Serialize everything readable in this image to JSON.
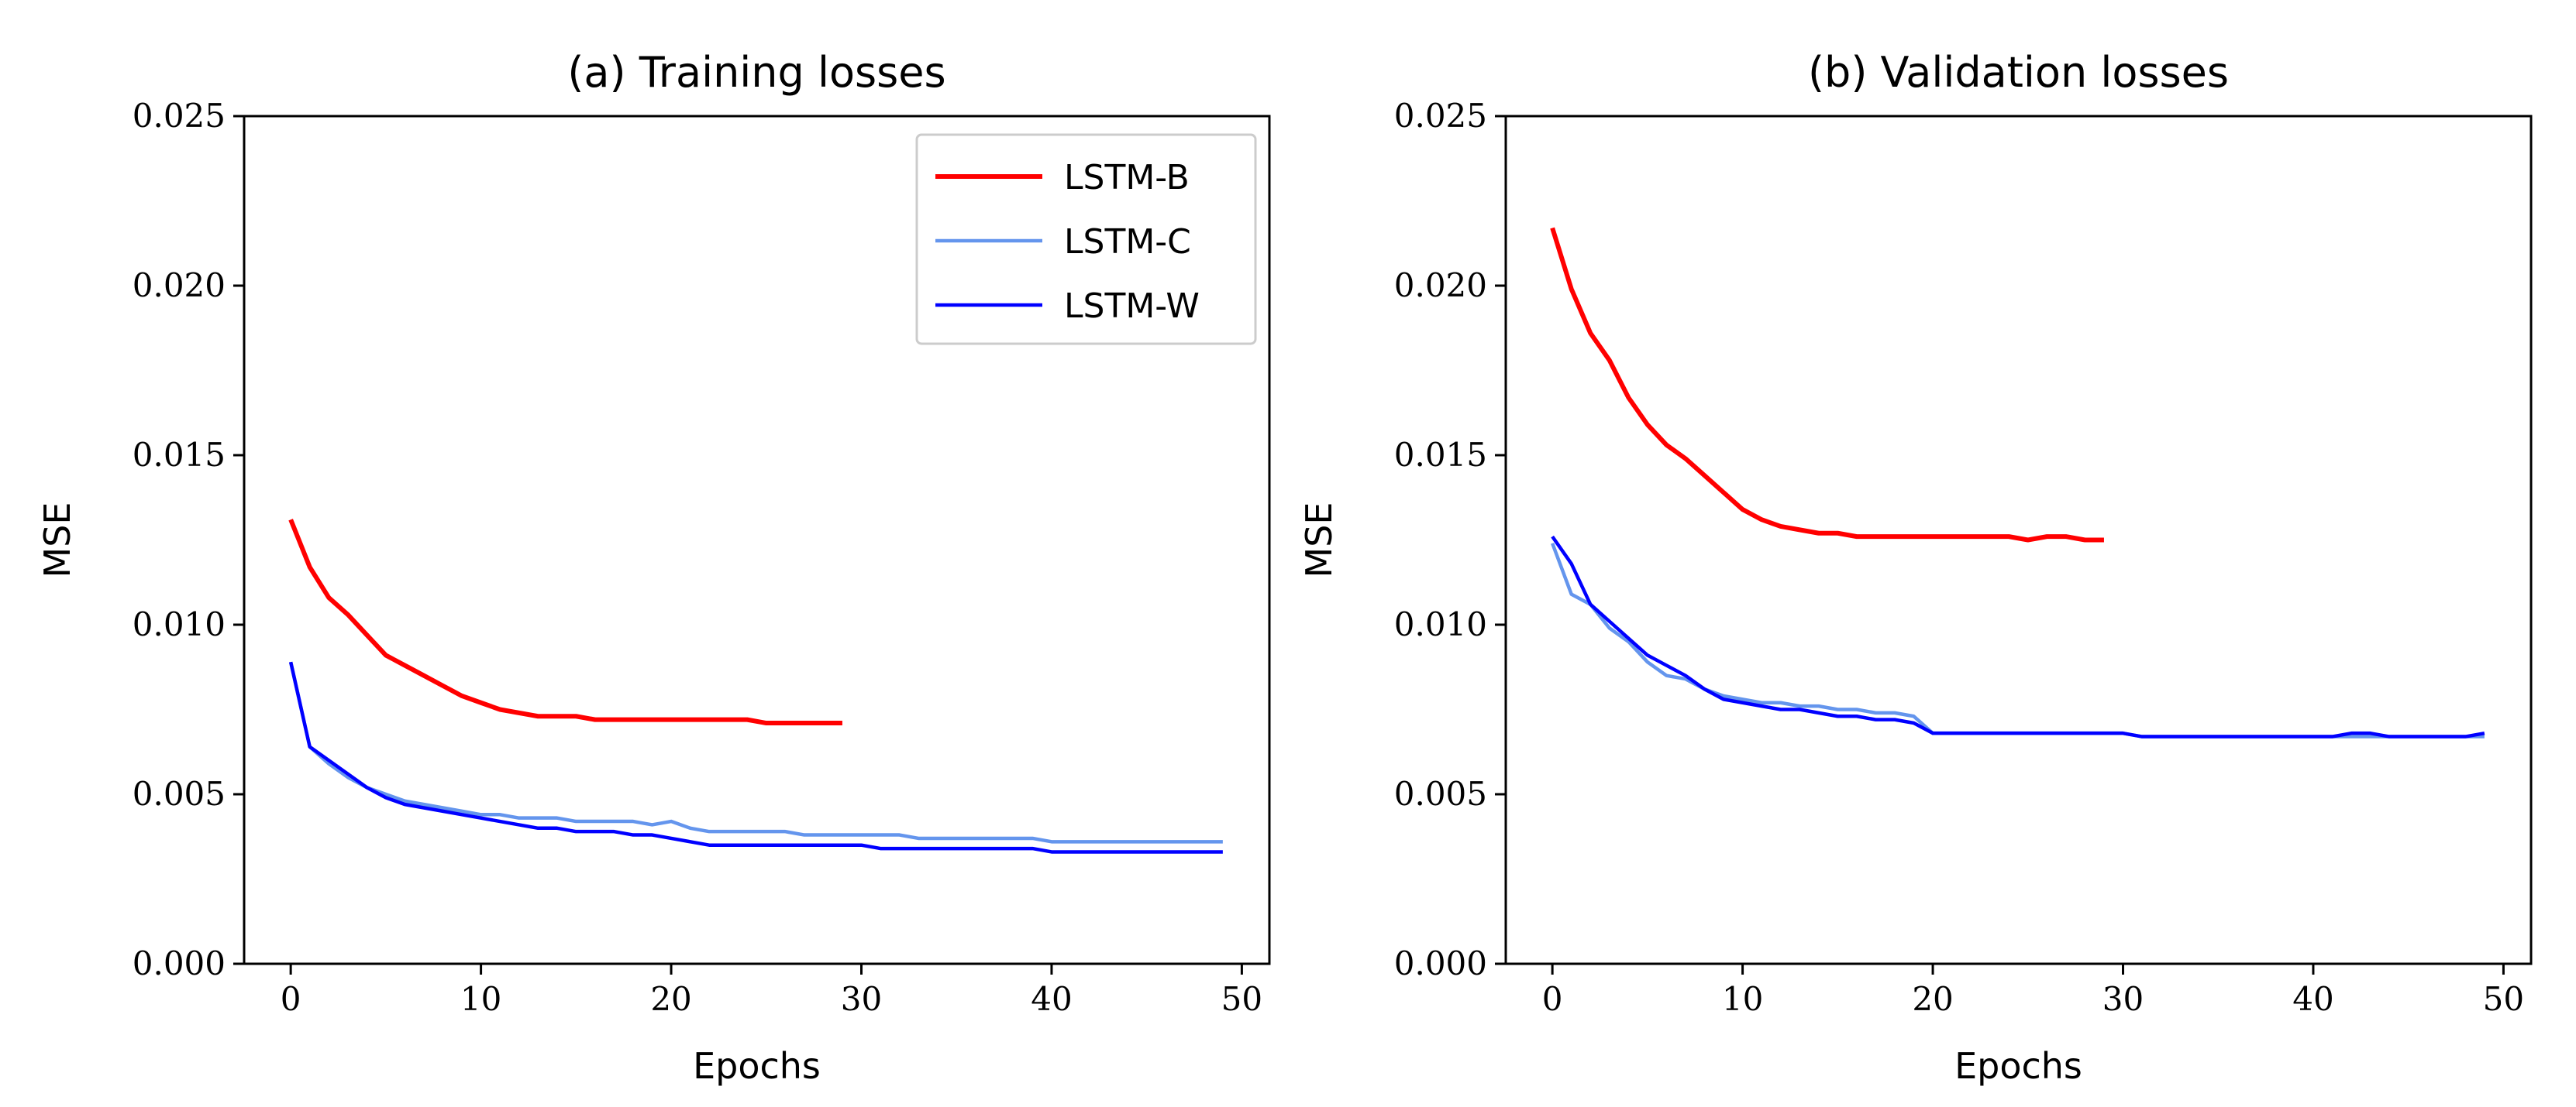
{
  "chart_data": [
    {
      "type": "line",
      "title": "(a) Training losses",
      "xlabel": "Epochs",
      "ylabel": "MSE",
      "xlim": [
        -2.45,
        51.45
      ],
      "ylim": [
        0,
        0.025
      ],
      "xticks": [
        0,
        10,
        20,
        30,
        40,
        50
      ],
      "xtick_labels": [
        "0",
        "10",
        "20",
        "30",
        "40",
        "50"
      ],
      "yticks": [
        0,
        0.005,
        0.01,
        0.015,
        0.02,
        0.025
      ],
      "ytick_labels": [
        "0.000",
        "0.005",
        "0.010",
        "0.015",
        "0.020",
        "0.025"
      ],
      "legend": "top-right",
      "series": [
        {
          "name": "LSTM-B",
          "color": "#ff0000",
          "x": [
            0,
            1,
            2,
            3,
            4,
            5,
            6,
            7,
            8,
            9,
            10,
            11,
            12,
            13,
            14,
            15,
            16,
            17,
            18,
            19,
            20,
            21,
            22,
            23,
            24,
            25,
            26,
            27,
            28,
            29
          ],
          "values": [
            0.0131,
            0.0117,
            0.0108,
            0.0103,
            0.0097,
            0.0091,
            0.0088,
            0.0085,
            0.0082,
            0.0079,
            0.0077,
            0.0075,
            0.0074,
            0.0073,
            0.0073,
            0.0073,
            0.0072,
            0.0072,
            0.0072,
            0.0072,
            0.0072,
            0.0072,
            0.0072,
            0.0072,
            0.0072,
            0.0071,
            0.0071,
            0.0071,
            0.0071,
            0.0071
          ]
        },
        {
          "name": "LSTM-C",
          "color": "#6495ed",
          "x": [
            0,
            1,
            2,
            3,
            4,
            5,
            6,
            7,
            8,
            9,
            10,
            11,
            12,
            13,
            14,
            15,
            16,
            17,
            18,
            19,
            20,
            21,
            22,
            23,
            24,
            25,
            26,
            27,
            28,
            29,
            30,
            31,
            32,
            33,
            34,
            35,
            36,
            37,
            38,
            39,
            40,
            41,
            42,
            43,
            44,
            45,
            46,
            47,
            48,
            49
          ],
          "values": [
            0.0089,
            0.0064,
            0.0059,
            0.0055,
            0.0052,
            0.005,
            0.0048,
            0.0047,
            0.0046,
            0.0045,
            0.0044,
            0.0044,
            0.0043,
            0.0043,
            0.0043,
            0.0042,
            0.0042,
            0.0042,
            0.0042,
            0.0041,
            0.0042,
            0.004,
            0.0039,
            0.0039,
            0.0039,
            0.0039,
            0.0039,
            0.0038,
            0.0038,
            0.0038,
            0.0038,
            0.0038,
            0.0038,
            0.0037,
            0.0037,
            0.0037,
            0.0037,
            0.0037,
            0.0037,
            0.0037,
            0.0036,
            0.0036,
            0.0036,
            0.0036,
            0.0036,
            0.0036,
            0.0036,
            0.0036,
            0.0036,
            0.0036
          ]
        },
        {
          "name": "LSTM-W",
          "color": "#0000ff",
          "x": [
            0,
            1,
            2,
            3,
            4,
            5,
            6,
            7,
            8,
            9,
            10,
            11,
            12,
            13,
            14,
            15,
            16,
            17,
            18,
            19,
            20,
            21,
            22,
            23,
            24,
            25,
            26,
            27,
            28,
            29,
            30,
            31,
            32,
            33,
            34,
            35,
            36,
            37,
            38,
            39,
            40,
            41,
            42,
            43,
            44,
            45,
            46,
            47,
            48,
            49
          ],
          "values": [
            0.0089,
            0.0064,
            0.006,
            0.0056,
            0.0052,
            0.0049,
            0.0047,
            0.0046,
            0.0045,
            0.0044,
            0.0043,
            0.0042,
            0.0041,
            0.004,
            0.004,
            0.0039,
            0.0039,
            0.0039,
            0.0038,
            0.0038,
            0.0037,
            0.0036,
            0.0035,
            0.0035,
            0.0035,
            0.0035,
            0.0035,
            0.0035,
            0.0035,
            0.0035,
            0.0035,
            0.0034,
            0.0034,
            0.0034,
            0.0034,
            0.0034,
            0.0034,
            0.0034,
            0.0034,
            0.0034,
            0.0033,
            0.0033,
            0.0033,
            0.0033,
            0.0033,
            0.0033,
            0.0033,
            0.0033,
            0.0033,
            0.0033
          ]
        }
      ]
    },
    {
      "type": "line",
      "title": "(b) Validation losses",
      "xlabel": "Epochs",
      "ylabel": "MSE",
      "xlim": [
        -2.45,
        51.45
      ],
      "ylim": [
        0,
        0.025
      ],
      "xticks": [
        0,
        10,
        20,
        30,
        40,
        50
      ],
      "xtick_labels": [
        "0",
        "10",
        "20",
        "30",
        "40",
        "50"
      ],
      "yticks": [
        0,
        0.005,
        0.01,
        0.015,
        0.02,
        0.025
      ],
      "ytick_labels": [
        "0.000",
        "0.005",
        "0.010",
        "0.015",
        "0.020",
        "0.025"
      ],
      "legend": "none",
      "series": [
        {
          "name": "LSTM-B",
          "color": "#ff0000",
          "x": [
            0,
            1,
            2,
            3,
            4,
            5,
            6,
            7,
            8,
            9,
            10,
            11,
            12,
            13,
            14,
            15,
            16,
            17,
            18,
            19,
            20,
            21,
            22,
            23,
            24,
            25,
            26,
            27,
            28,
            29
          ],
          "values": [
            0.0217,
            0.0199,
            0.0186,
            0.0178,
            0.0167,
            0.0159,
            0.0153,
            0.0149,
            0.0144,
            0.0139,
            0.0134,
            0.0131,
            0.0129,
            0.0128,
            0.0127,
            0.0127,
            0.0126,
            0.0126,
            0.0126,
            0.0126,
            0.0126,
            0.0126,
            0.0126,
            0.0126,
            0.0126,
            0.0125,
            0.0126,
            0.0126,
            0.0125,
            0.0125
          ]
        },
        {
          "name": "LSTM-C",
          "color": "#6495ed",
          "x": [
            0,
            1,
            2,
            3,
            4,
            5,
            6,
            7,
            8,
            9,
            10,
            11,
            12,
            13,
            14,
            15,
            16,
            17,
            18,
            19,
            20,
            21,
            22,
            23,
            24,
            25,
            26,
            27,
            28,
            29,
            30,
            31,
            32,
            33,
            34,
            35,
            36,
            37,
            38,
            39,
            40,
            41,
            42,
            43,
            44,
            45,
            46,
            47,
            48,
            49
          ],
          "values": [
            0.0124,
            0.0109,
            0.0106,
            0.0099,
            0.0095,
            0.0089,
            0.0085,
            0.0084,
            0.0081,
            0.0079,
            0.0078,
            0.0077,
            0.0077,
            0.0076,
            0.0076,
            0.0075,
            0.0075,
            0.0074,
            0.0074,
            0.0073,
            0.0068,
            0.0068,
            0.0068,
            0.0068,
            0.0068,
            0.0068,
            0.0068,
            0.0068,
            0.0068,
            0.0068,
            0.0068,
            0.0067,
            0.0067,
            0.0067,
            0.0067,
            0.0067,
            0.0067,
            0.0067,
            0.0067,
            0.0067,
            0.0067,
            0.0067,
            0.0067,
            0.0067,
            0.0067,
            0.0067,
            0.0067,
            0.0067,
            0.0067,
            0.0067
          ]
        },
        {
          "name": "LSTM-W",
          "color": "#0000ff",
          "x": [
            0,
            1,
            2,
            3,
            4,
            5,
            6,
            7,
            8,
            9,
            10,
            11,
            12,
            13,
            14,
            15,
            16,
            17,
            18,
            19,
            20,
            21,
            22,
            23,
            24,
            25,
            26,
            27,
            28,
            29,
            30,
            31,
            32,
            33,
            34,
            35,
            36,
            37,
            38,
            39,
            40,
            41,
            42,
            43,
            44,
            45,
            46,
            47,
            48,
            49
          ],
          "values": [
            0.0126,
            0.0118,
            0.0106,
            0.0101,
            0.0096,
            0.0091,
            0.0088,
            0.0085,
            0.0081,
            0.0078,
            0.0077,
            0.0076,
            0.0075,
            0.0075,
            0.0074,
            0.0073,
            0.0073,
            0.0072,
            0.0072,
            0.0071,
            0.0068,
            0.0068,
            0.0068,
            0.0068,
            0.0068,
            0.0068,
            0.0068,
            0.0068,
            0.0068,
            0.0068,
            0.0068,
            0.0067,
            0.0067,
            0.0067,
            0.0067,
            0.0067,
            0.0067,
            0.0067,
            0.0067,
            0.0067,
            0.0067,
            0.0067,
            0.0068,
            0.0068,
            0.0067,
            0.0067,
            0.0067,
            0.0067,
            0.0067,
            0.0068
          ]
        }
      ]
    }
  ]
}
